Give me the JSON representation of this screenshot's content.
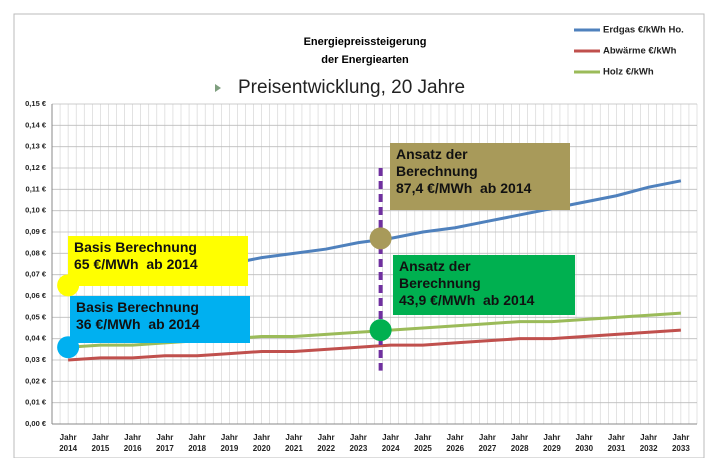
{
  "chart_data": {
    "type": "line",
    "title": [
      "Energiepreissteigerung",
      "der Energiearten"
    ],
    "subtitle": "Preisentwicklung, 20 Jahre",
    "categories": [
      "Jahr 2014",
      "Jahr 2015",
      "Jahr 2016",
      "Jahr 2017",
      "Jahr 2018",
      "Jahr 2019",
      "Jahr 2020",
      "Jahr 2021",
      "Jahr 2022",
      "Jahr 2023",
      "Jahr 2024",
      "Jahr 2025",
      "Jahr 2026",
      "Jahr 2027",
      "Jahr 2028",
      "Jahr 2029",
      "Jahr 2030",
      "Jahr 2031",
      "Jahr 2032",
      "Jahr 2033"
    ],
    "series": [
      {
        "name": "Erdgas €/kWh Ho.",
        "color": "#4f81bd",
        "values": [
          0.065,
          0.067,
          0.069,
          0.071,
          0.073,
          0.075,
          0.078,
          0.08,
          0.082,
          0.085,
          0.087,
          0.09,
          0.092,
          0.095,
          0.098,
          0.101,
          0.104,
          0.107,
          0.111,
          0.114
        ]
      },
      {
        "name": "Abwärme €/kWh",
        "color": "#c0504d",
        "values": [
          0.03,
          0.031,
          0.031,
          0.032,
          0.032,
          0.033,
          0.034,
          0.034,
          0.035,
          0.036,
          0.037,
          0.037,
          0.038,
          0.039,
          0.04,
          0.04,
          0.041,
          0.042,
          0.043,
          0.044
        ]
      },
      {
        "name": "Holz €/kWh",
        "color": "#9bbb59",
        "values": [
          0.036,
          0.037,
          0.037,
          0.038,
          0.039,
          0.04,
          0.041,
          0.041,
          0.042,
          0.043,
          0.044,
          0.045,
          0.046,
          0.047,
          0.048,
          0.048,
          0.049,
          0.05,
          0.051,
          0.052
        ]
      }
    ],
    "ylim": [
      0,
      0.15
    ],
    "yticks": [
      {
        "value": 0,
        "label": "0,00 €"
      },
      {
        "value": 0.01,
        "label": "0,01 €"
      },
      {
        "value": 0.02,
        "label": "0,02 €"
      },
      {
        "value": 0.03,
        "label": "0,03 €"
      },
      {
        "value": 0.04,
        "label": "0,04 €"
      },
      {
        "value": 0.05,
        "label": "0,05 €"
      },
      {
        "value": 0.06,
        "label": "0,06 €"
      },
      {
        "value": 0.07,
        "label": "0,07 €"
      },
      {
        "value": 0.08,
        "label": "0,08 €"
      },
      {
        "value": 0.09,
        "label": "0,09 €"
      },
      {
        "value": 0.1,
        "label": "0,10 €"
      },
      {
        "value": 0.11,
        "label": "0,11 €"
      },
      {
        "value": 0.12,
        "label": "0,12 €"
      },
      {
        "value": 0.13,
        "label": "0,13 €"
      },
      {
        "value": 0.14,
        "label": "0,14 €"
      },
      {
        "value": 0.15,
        "label": "0,15 €"
      }
    ],
    "grid": true,
    "legend": "top-right",
    "annotations": [
      {
        "lines": [
          "Basis Berechnung",
          "65 €/MWh  ab 2014"
        ],
        "color": "#ffff00",
        "category": "Jahr 2014",
        "value": 0.065
      },
      {
        "lines": [
          "Basis Berechnung",
          "36 €/MWh  ab 2014"
        ],
        "color": "#00b0f0",
        "category": "Jahr 2014",
        "value": 0.036
      },
      {
        "lines": [
          "Ansatz der",
          "Berechnung",
          "87,4 €/MWh  ab 2014"
        ],
        "color": "#a89a5a",
        "category": "Jahr 2024",
        "value": 0.087
      },
      {
        "lines": [
          "Ansatz der",
          "Berechnung",
          "43,9 €/MWh  ab 2014"
        ],
        "color": "#00b050",
        "category": "Jahr 2024",
        "value": 0.044
      }
    ]
  }
}
